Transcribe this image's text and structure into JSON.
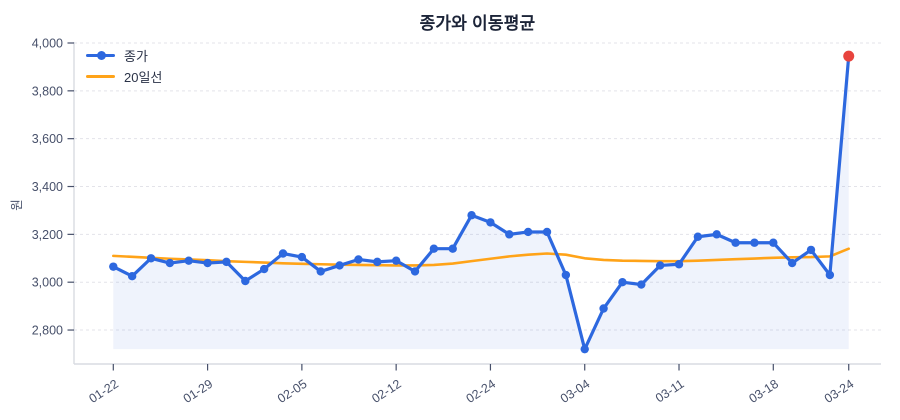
{
  "title": "종가와 이동평균",
  "y_axis_label": "원",
  "legend": {
    "items": [
      {
        "label": "종가",
        "color": "#2d68df",
        "marker": "line-with-dot"
      },
      {
        "label": "20일선",
        "color": "#ffa318",
        "marker": "line"
      }
    ]
  },
  "colors": {
    "close_line": "#2d68df",
    "ma_line": "#ffa318",
    "last_point": "#e8443e",
    "area_fill": "rgba(45,104,223,0.08)",
    "gridline": "#e3e3e9",
    "spine": "#d8dbe2",
    "tick_text": "#47506a",
    "title_text": "#1c2438"
  },
  "chart_data": {
    "type": "line",
    "title": "종가와 이동평균",
    "xlabel": "",
    "ylabel": "원",
    "grid": true,
    "legend_position": "upper-left",
    "ylim": [
      2658,
      4000
    ],
    "y_ticks": [
      2800,
      3000,
      3200,
      3400,
      3600,
      3800,
      4000
    ],
    "x_tick_indices": [
      0,
      5,
      10,
      15,
      20,
      25,
      30,
      35,
      39
    ],
    "x_tick_labels": [
      "01-22",
      "01-29",
      "02-05",
      "02-12",
      "02-24",
      "03-04",
      "03-11",
      "03-18",
      "03-24"
    ],
    "series": [
      {
        "name": "종가",
        "color": "#2d68df",
        "markers": true,
        "values": [
          3065,
          3025,
          3100,
          3080,
          3090,
          3080,
          3085,
          3005,
          3055,
          3120,
          3105,
          3045,
          3070,
          3095,
          3085,
          3090,
          3045,
          3140,
          3140,
          3280,
          3250,
          3200,
          3210,
          3210,
          3030,
          2720,
          2890,
          3000,
          2990,
          3070,
          3075,
          3190,
          3200,
          3165,
          3165,
          3165,
          3080,
          3135,
          3030,
          3945
        ]
      },
      {
        "name": "20일선",
        "color": "#ffa318",
        "markers": false,
        "values": [
          3110,
          3106,
          3102,
          3098,
          3095,
          3092,
          3088,
          3085,
          3082,
          3079,
          3077,
          3075,
          3073,
          3072,
          3071,
          3070,
          3070,
          3072,
          3078,
          3088,
          3098,
          3108,
          3115,
          3120,
          3115,
          3100,
          3093,
          3090,
          3089,
          3088,
          3088,
          3090,
          3093,
          3096,
          3099,
          3102,
          3104,
          3105,
          3108,
          3140
        ]
      }
    ],
    "highlight_last_point": true
  }
}
